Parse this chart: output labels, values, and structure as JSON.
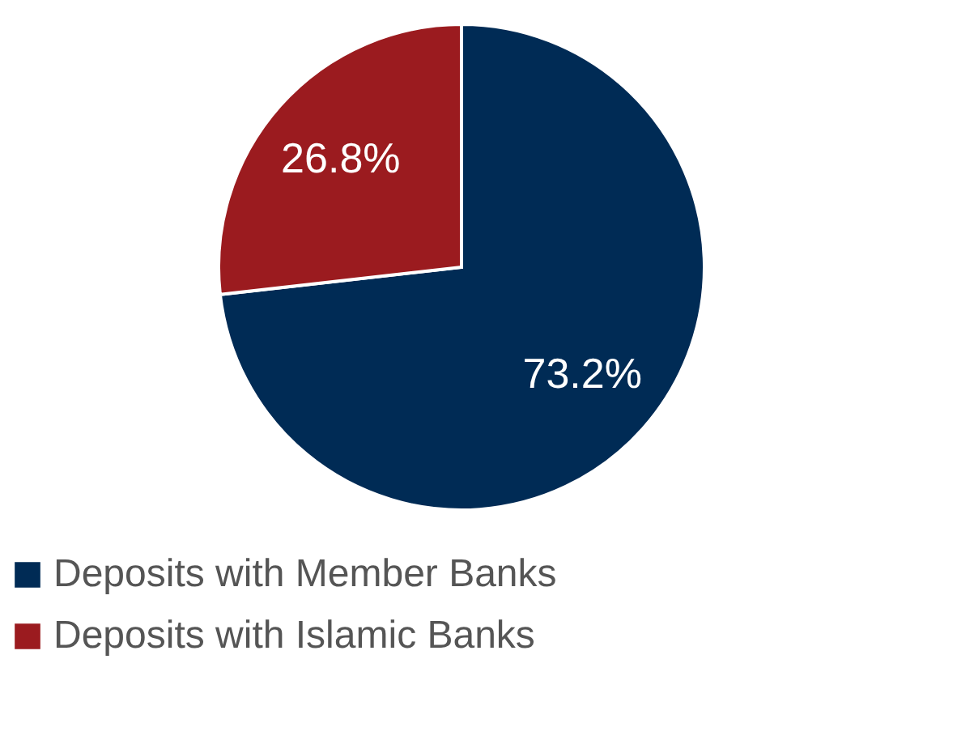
{
  "chart_data": {
    "type": "pie",
    "categories": [
      "Deposits with Member Banks",
      "Deposits with Islamic Banks"
    ],
    "values": [
      73.2,
      26.8
    ],
    "colors": [
      "#002b55",
      "#9b1b1f"
    ],
    "value_labels": [
      "73.2%",
      "26.8%"
    ],
    "legend": "bottom"
  }
}
